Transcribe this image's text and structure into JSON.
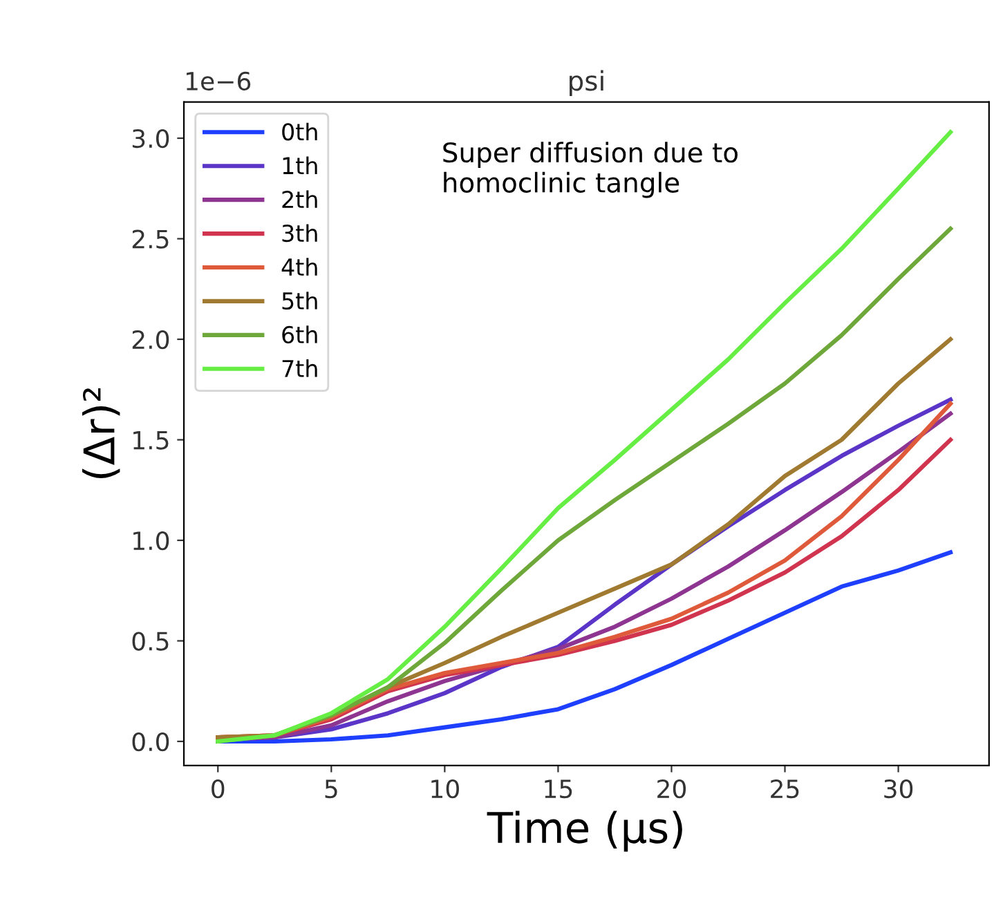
{
  "chart_data": {
    "type": "line",
    "title": "psi",
    "xlabel": "Time (μs)",
    "ylabel": "(Δr)²",
    "annotations": [
      "1e−6",
      "Super diffusion due to\nhomoclinic tangle"
    ],
    "x": [
      0,
      2.5,
      5,
      7.5,
      10,
      12.5,
      15,
      17.5,
      20,
      22.5,
      25,
      27.5,
      30,
      32.3
    ],
    "series": [
      {
        "name": "0th",
        "color": "#1f3fff",
        "values": [
          0.0,
          0.0,
          0.01,
          0.03,
          0.07,
          0.11,
          0.16,
          0.26,
          0.38,
          0.51,
          0.64,
          0.77,
          0.85,
          0.94
        ]
      },
      {
        "name": "1th",
        "color": "#5a35c8",
        "values": [
          0.01,
          0.02,
          0.06,
          0.14,
          0.24,
          0.37,
          0.47,
          0.68,
          0.88,
          1.07,
          1.25,
          1.42,
          1.57,
          1.7
        ]
      },
      {
        "name": "2th",
        "color": "#8e3592",
        "values": [
          0.01,
          0.02,
          0.08,
          0.2,
          0.3,
          0.38,
          0.46,
          0.57,
          0.71,
          0.87,
          1.05,
          1.24,
          1.44,
          1.63
        ]
      },
      {
        "name": "3th",
        "color": "#d0344e",
        "values": [
          0.02,
          0.03,
          0.11,
          0.25,
          0.33,
          0.38,
          0.43,
          0.5,
          0.58,
          0.7,
          0.84,
          1.02,
          1.25,
          1.5
        ]
      },
      {
        "name": "4th",
        "color": "#de5a3a",
        "values": [
          0.02,
          0.03,
          0.12,
          0.26,
          0.34,
          0.39,
          0.44,
          0.52,
          0.61,
          0.74,
          0.9,
          1.12,
          1.4,
          1.68
        ]
      },
      {
        "name": "5th",
        "color": "#a07a30",
        "values": [
          0.02,
          0.03,
          0.13,
          0.27,
          0.39,
          0.52,
          0.64,
          0.76,
          0.88,
          1.08,
          1.32,
          1.5,
          1.78,
          2.0
        ]
      },
      {
        "name": "6th",
        "color": "#6fa83a",
        "values": [
          0.0,
          0.03,
          0.13,
          0.27,
          0.49,
          0.75,
          1.0,
          1.2,
          1.39,
          1.58,
          1.78,
          2.02,
          2.3,
          2.55
        ]
      },
      {
        "name": "7th",
        "color": "#66ee44",
        "values": [
          0.0,
          0.03,
          0.14,
          0.31,
          0.57,
          0.86,
          1.16,
          1.4,
          1.65,
          1.9,
          2.18,
          2.45,
          2.75,
          3.03
        ]
      }
    ],
    "xlim": [
      -1.5,
      34
    ],
    "xticks": [
      0,
      5,
      10,
      15,
      20,
      25,
      30
    ],
    "ylim": [
      -0.12,
      3.18
    ],
    "yticks": [
      {
        "value": 0,
        "label": "0.0"
      },
      0.5,
      {
        "value": 1,
        "label": "1.0"
      },
      1.5,
      {
        "value": 2,
        "label": "2.0"
      },
      2.5,
      {
        "value": 3,
        "label": "3.0"
      }
    ],
    "legend": "top left",
    "grid": false,
    "marker": "none",
    "line_style": "solid"
  }
}
